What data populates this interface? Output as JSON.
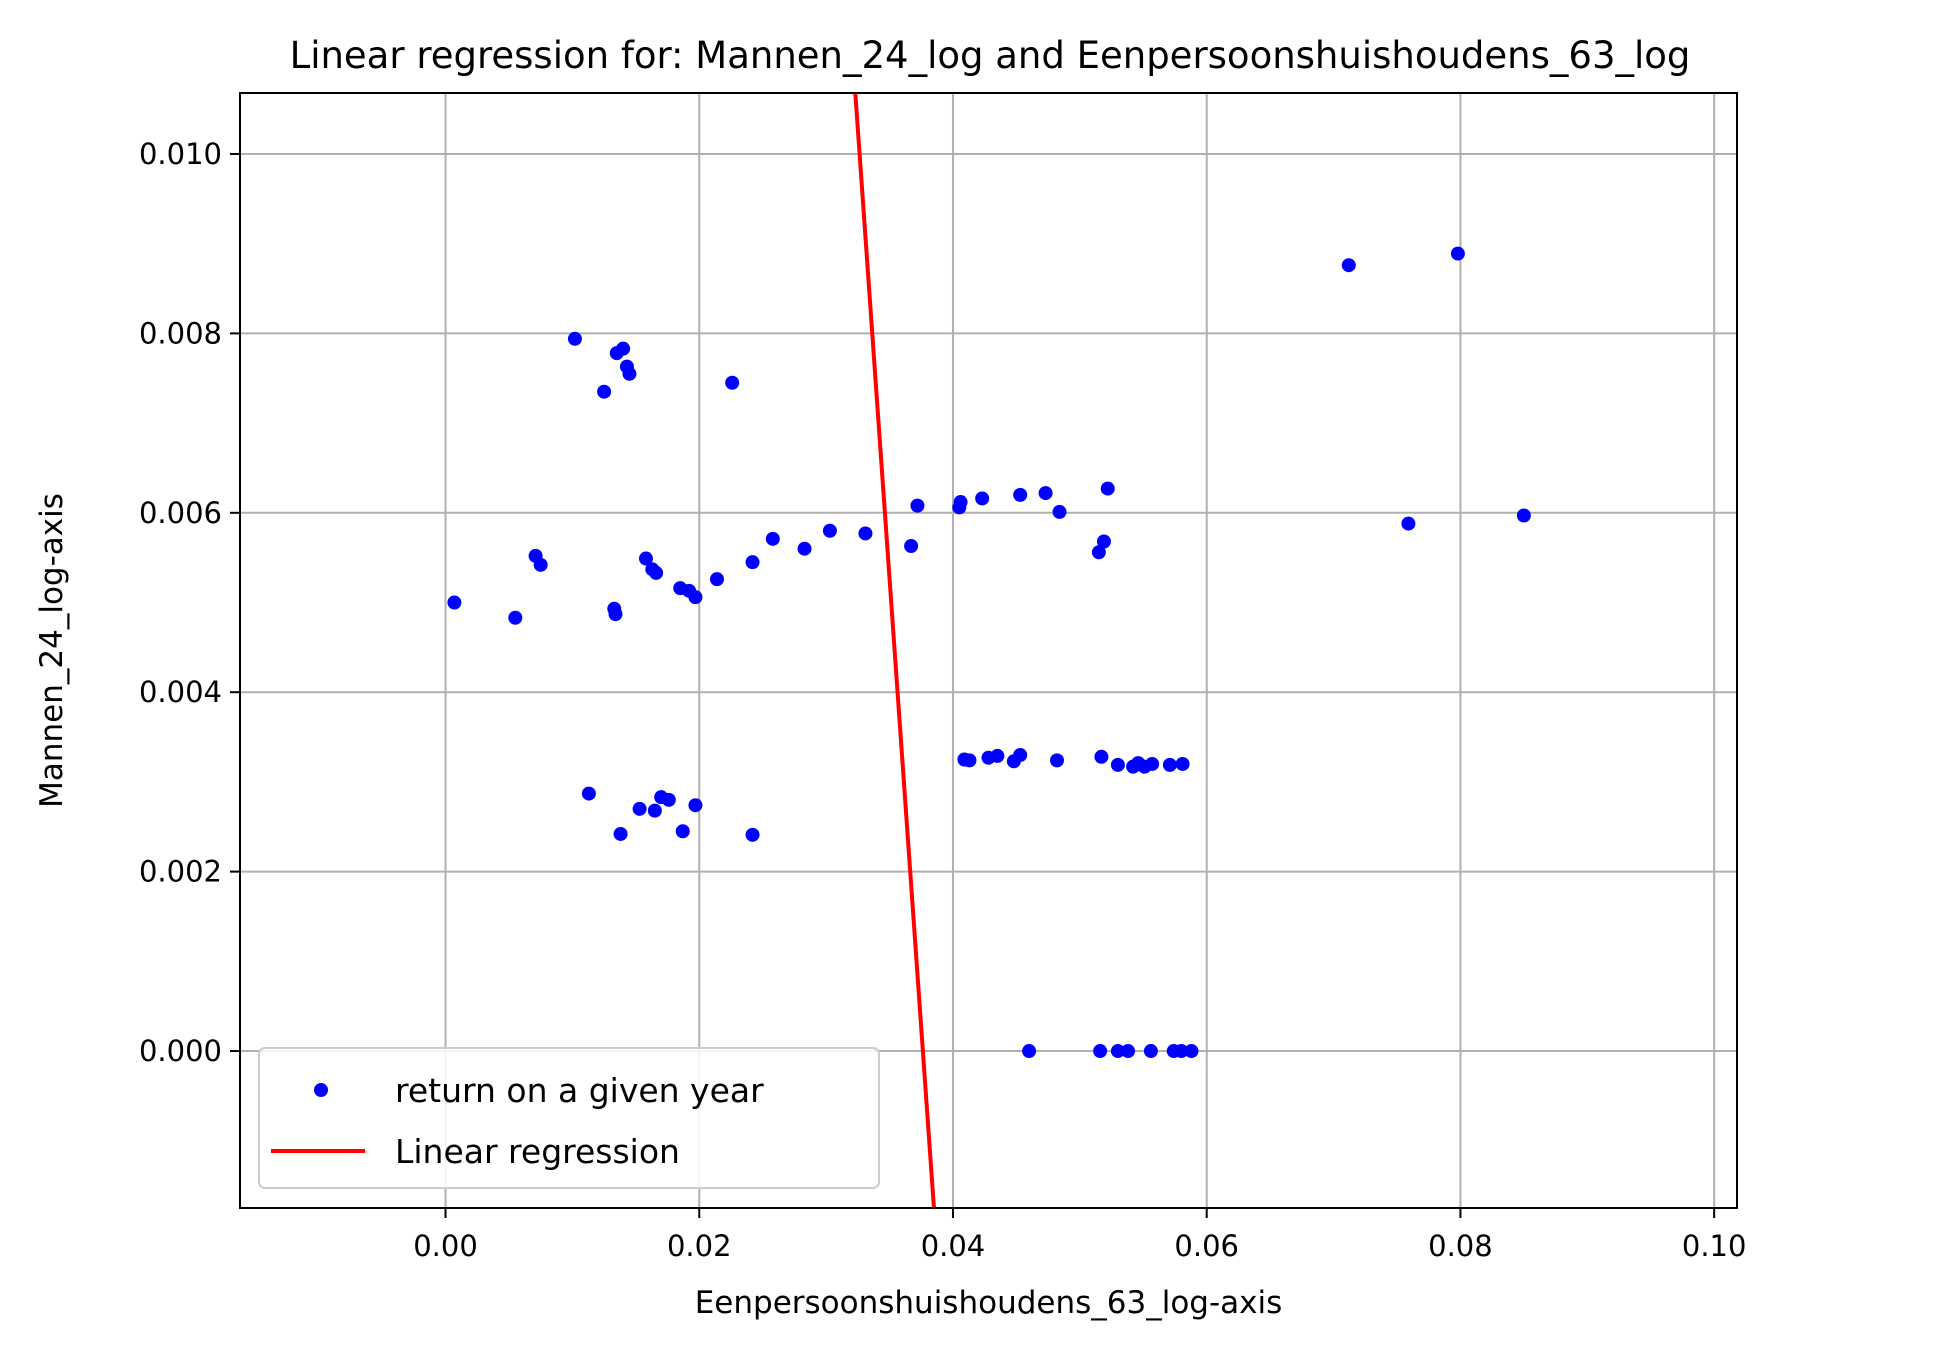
{
  "chart_data": {
    "type": "scatter",
    "title": "Linear regression for: Mannen_24_log and Eenpersoonshuishoudens_63_log",
    "xlabel": "Eenpersoonshuishoudens_63_log-axis",
    "ylabel": "Mannen_24_log-axis",
    "xlim": [
      -0.0162,
      0.1018
    ],
    "ylim": [
      -0.00175,
      0.01068
    ],
    "xticks": [
      0.0,
      0.02,
      0.04,
      0.06,
      0.08,
      0.1
    ],
    "xtick_labels": [
      "0.00",
      "0.02",
      "0.04",
      "0.06",
      "0.08",
      "0.10"
    ],
    "yticks": [
      0.0,
      0.002,
      0.004,
      0.006,
      0.008,
      0.01
    ],
    "ytick_labels": [
      "0.000",
      "0.002",
      "0.004",
      "0.006",
      "0.008",
      "0.010"
    ],
    "grid": true,
    "legend": {
      "placement": "lower-left",
      "entries": [
        "return on a given year",
        "Linear regression"
      ]
    },
    "colors": {
      "scatter": "#0000ff",
      "regression": "#ff0000",
      "grid": "#b0b0b0"
    },
    "series": [
      {
        "name": "return on a given year",
        "kind": "scatter",
        "points": [
          [
            0.0007,
            0.005
          ],
          [
            0.0055,
            0.00483
          ],
          [
            0.0071,
            0.00552
          ],
          [
            0.0075,
            0.00542
          ],
          [
            0.0102,
            0.00794
          ],
          [
            0.0125,
            0.00735
          ],
          [
            0.0133,
            0.00493
          ],
          [
            0.0134,
            0.00487
          ],
          [
            0.0135,
            0.00778
          ],
          [
            0.014,
            0.00783
          ],
          [
            0.0143,
            0.00763
          ],
          [
            0.0145,
            0.00755
          ],
          [
            0.0158,
            0.00549
          ],
          [
            0.0163,
            0.00537
          ],
          [
            0.0166,
            0.00533
          ],
          [
            0.0185,
            0.00516
          ],
          [
            0.0192,
            0.00513
          ],
          [
            0.0197,
            0.00506
          ],
          [
            0.0214,
            0.00526
          ],
          [
            0.0226,
            0.00745
          ],
          [
            0.0242,
            0.00545
          ],
          [
            0.0258,
            0.00571
          ],
          [
            0.0283,
            0.0056
          ],
          [
            0.0303,
            0.0058
          ],
          [
            0.0331,
            0.00577
          ],
          [
            0.0367,
            0.00563
          ],
          [
            0.0372,
            0.00608
          ],
          [
            0.0405,
            0.00606
          ],
          [
            0.0406,
            0.00612
          ],
          [
            0.0423,
            0.00616
          ],
          [
            0.0453,
            0.0062
          ],
          [
            0.0473,
            0.00622
          ],
          [
            0.0484,
            0.00601
          ],
          [
            0.0515,
            0.00556
          ],
          [
            0.0519,
            0.00568
          ],
          [
            0.0522,
            0.00627
          ],
          [
            0.0712,
            0.00876
          ],
          [
            0.0759,
            0.00588
          ],
          [
            0.0798,
            0.00889
          ],
          [
            0.085,
            0.00597
          ],
          [
            0.0113,
            0.00287
          ],
          [
            0.0138,
            0.00242
          ],
          [
            0.0153,
            0.0027
          ],
          [
            0.0165,
            0.00268
          ],
          [
            0.017,
            0.00283
          ],
          [
            0.0176,
            0.0028
          ],
          [
            0.0187,
            0.00245
          ],
          [
            0.0197,
            0.00274
          ],
          [
            0.0242,
            0.00241
          ],
          [
            0.0409,
            0.00325
          ],
          [
            0.0413,
            0.00324
          ],
          [
            0.0428,
            0.00327
          ],
          [
            0.0435,
            0.00329
          ],
          [
            0.0448,
            0.00323
          ],
          [
            0.0453,
            0.0033
          ],
          [
            0.0482,
            0.00324
          ],
          [
            0.0517,
            0.00328
          ],
          [
            0.053,
            0.00319
          ],
          [
            0.0542,
            0.00317
          ],
          [
            0.0546,
            0.00321
          ],
          [
            0.0551,
            0.00317
          ],
          [
            0.0557,
            0.0032
          ],
          [
            0.0571,
            0.00319
          ],
          [
            0.0581,
            0.0032
          ],
          [
            0.046,
            0.0
          ],
          [
            0.0516,
            0.0
          ],
          [
            0.053,
            0.0
          ],
          [
            0.0538,
            0.0
          ],
          [
            0.0556,
            0.0
          ],
          [
            0.0574,
            0.0
          ],
          [
            0.058,
            0.0
          ],
          [
            0.0588,
            0.0
          ]
        ]
      },
      {
        "name": "Linear regression",
        "kind": "line",
        "points": [
          [
            0.0323,
            0.01068
          ],
          [
            0.0385,
            -0.00175
          ]
        ]
      }
    ]
  }
}
